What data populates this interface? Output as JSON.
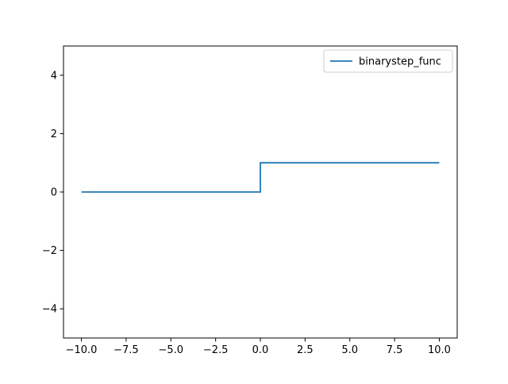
{
  "chart_data": {
    "type": "line",
    "title": "",
    "xlabel": "",
    "ylabel": "",
    "xlim": [
      -11.0,
      11.0
    ],
    "ylim": [
      -5,
      5
    ],
    "x_ticks": [
      -10.0,
      -7.5,
      -5.0,
      -2.5,
      0.0,
      2.5,
      5.0,
      7.5,
      10.0
    ],
    "x_tick_labels": [
      "−10.0",
      "−7.5",
      "−5.0",
      "−2.5",
      "0.0",
      "2.5",
      "5.0",
      "7.5",
      "10.0"
    ],
    "y_ticks": [
      -4,
      -2,
      0,
      2,
      4
    ],
    "y_tick_labels": [
      "−4",
      "−2",
      "0",
      "2",
      "4"
    ],
    "grid": false,
    "legend_position": "top-right",
    "series": [
      {
        "name": "binarystep_func",
        "color": "#1f77b4",
        "x": [
          -10,
          0,
          0,
          10
        ],
        "y": [
          0,
          0,
          1,
          1
        ]
      }
    ]
  }
}
